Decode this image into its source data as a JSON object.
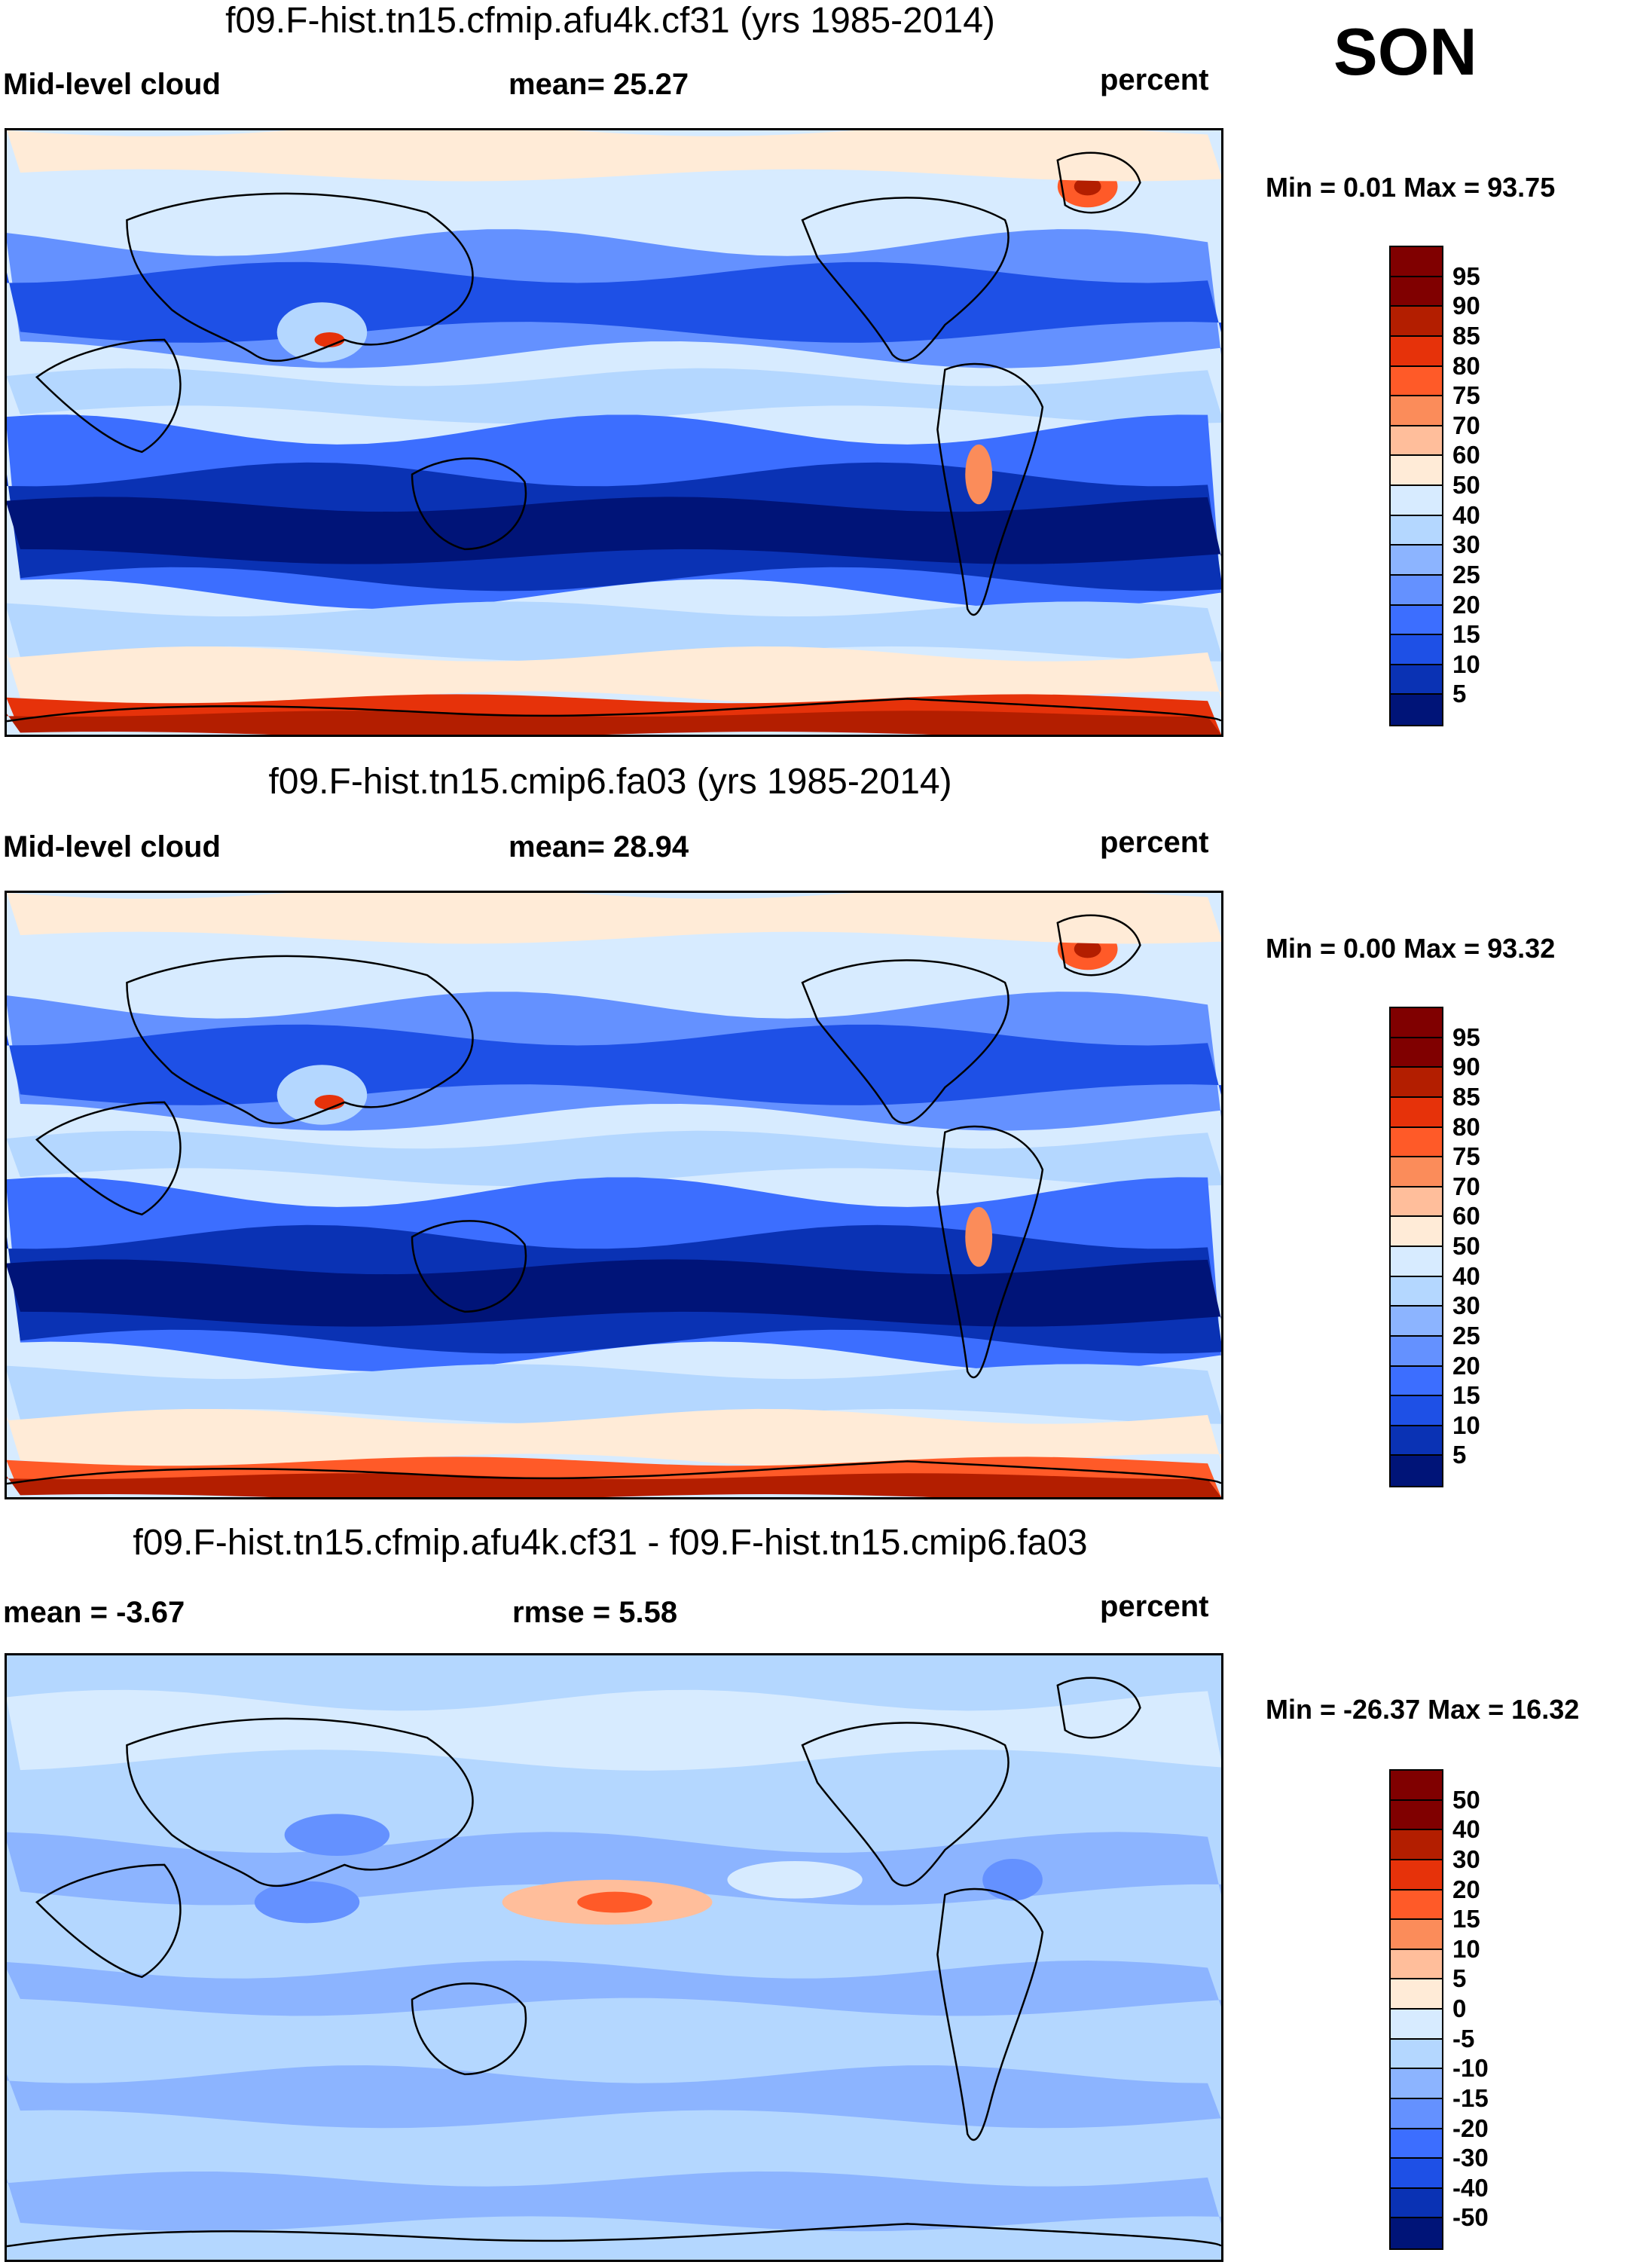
{
  "season": "SON",
  "panels": [
    {
      "title": "f09.F-hist.tn15.cfmip.afu4k.cf31 (yrs 1985-2014)",
      "left_label": "Mid-level cloud",
      "center_label": "mean=  25.27",
      "units": "percent",
      "minmax": "Min =   0.01 Max =  93.75",
      "field": "cfmip",
      "colorbar": {
        "levels": [
          "95",
          "90",
          "85",
          "80",
          "75",
          "70",
          "60",
          "50",
          "40",
          "30",
          "25",
          "20",
          "15",
          "10",
          "5"
        ],
        "colors": [
          "#800000",
          "#b31e00",
          "#e6320a",
          "#ff5a28",
          "#fb8c5a",
          "#ffbe9b",
          "#ffebd7",
          "#d7ebff",
          "#b4d7ff",
          "#8cb4ff",
          "#6491ff",
          "#3c6eff",
          "#1e50e6",
          "#0a32b4",
          "#001478"
        ]
      }
    },
    {
      "title": "f09.F-hist.tn15.cmip6.fa03 (yrs 1985-2014)",
      "left_label": "Mid-level cloud",
      "center_label": "mean=  28.94",
      "units": "percent",
      "minmax": "Min =   0.00 Max =  93.32",
      "field": "cmip6",
      "colorbar": {
        "levels": [
          "95",
          "90",
          "85",
          "80",
          "75",
          "70",
          "60",
          "50",
          "40",
          "30",
          "25",
          "20",
          "15",
          "10",
          "5"
        ],
        "colors": [
          "#800000",
          "#b31e00",
          "#e6320a",
          "#ff5a28",
          "#fb8c5a",
          "#ffbe9b",
          "#ffebd7",
          "#d7ebff",
          "#b4d7ff",
          "#8cb4ff",
          "#6491ff",
          "#3c6eff",
          "#1e50e6",
          "#0a32b4",
          "#001478"
        ]
      }
    },
    {
      "title": "f09.F-hist.tn15.cfmip.afu4k.cf31 - f09.F-hist.tn15.cmip6.fa03",
      "left_label": "mean =  -3.67",
      "center_label": "rmse =    5.58",
      "units": "percent",
      "minmax": "Min = -26.37 Max =  16.32",
      "field": "diff",
      "colorbar": {
        "levels": [
          "50",
          "40",
          "30",
          "20",
          "15",
          "10",
          "5",
          "0",
          "-5",
          "-10",
          "-15",
          "-20",
          "-30",
          "-40",
          "-50"
        ],
        "colors": [
          "#800000",
          "#b31e00",
          "#e6320a",
          "#ff5a28",
          "#fb8c5a",
          "#ffbe9b",
          "#ffebd7",
          "#d7ebff",
          "#b4d7ff",
          "#8cb4ff",
          "#6491ff",
          "#3c6eff",
          "#1e50e6",
          "#0a32b4",
          "#001478"
        ]
      }
    }
  ]
}
